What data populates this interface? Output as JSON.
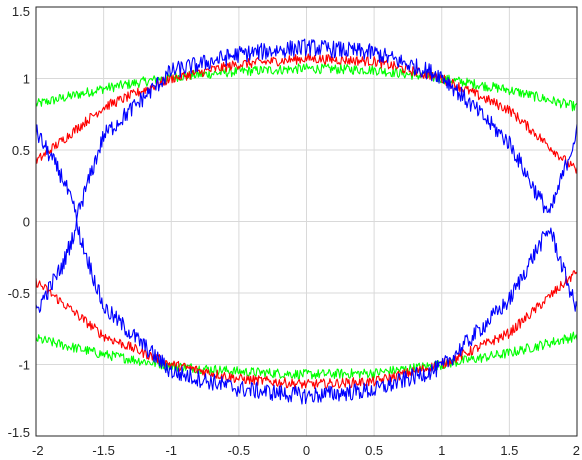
{
  "chart_data": {
    "type": "line",
    "title": "",
    "xlabel": "",
    "ylabel": "",
    "xlim": [
      -2,
      2
    ],
    "ylim": [
      -1.5,
      1.5
    ],
    "grid": true,
    "xticks": [
      -2,
      -1.5,
      -1,
      -0.5,
      0,
      0.5,
      1,
      1.5,
      2
    ],
    "yticks": [
      -1.5,
      -1,
      -0.5,
      0,
      0.5,
      1,
      1.5
    ],
    "xtick_labels": [
      "-2",
      "-1.5",
      "-1",
      "-0.5",
      "0",
      "0.5",
      "1",
      "1.5",
      "2"
    ],
    "ytick_labels": [
      "-1.5",
      "-1",
      "-0.5",
      "0",
      "0.5",
      "1",
      "1.5"
    ],
    "series": [
      {
        "color": "#00ff00",
        "x": [
          -2,
          -1.5,
          -1,
          -0.5,
          0,
          0.5,
          1,
          1.5,
          2
        ],
        "upper": [
          0.82,
          0.93,
          1.01,
          1.05,
          1.07,
          1.06,
          1.0,
          0.92,
          0.8
        ],
        "lower": [
          -0.82,
          -0.93,
          -1.01,
          -1.05,
          -1.07,
          -1.06,
          -1.0,
          -0.92,
          -0.8
        ]
      },
      {
        "color": "#ff0000",
        "x": [
          -2,
          -1.5,
          -1,
          -0.5,
          0,
          0.5,
          1,
          1.5,
          2
        ],
        "upper": [
          0.42,
          0.8,
          1.0,
          1.1,
          1.14,
          1.12,
          1.0,
          0.78,
          0.35
        ],
        "lower": [
          -0.42,
          -0.8,
          -1.0,
          -1.1,
          -1.14,
          -1.12,
          -1.0,
          -0.78,
          -0.35
        ]
      },
      {
        "color": "#0000ff",
        "x": [
          -2,
          -1.8,
          -1.7,
          -1.5,
          -1,
          -0.5,
          0,
          0.5,
          1,
          1.5,
          1.7,
          1.8,
          2
        ],
        "upper": [
          0.63,
          0.3,
          0.03,
          0.6,
          1.05,
          1.17,
          1.22,
          1.18,
          1.02,
          0.55,
          0.2,
          0.05,
          0.63
        ],
        "lower": [
          -0.63,
          -0.3,
          -0.03,
          -0.6,
          -1.05,
          -1.17,
          -1.22,
          -1.18,
          -1.02,
          -0.55,
          -0.2,
          -0.05,
          -0.63
        ]
      }
    ]
  }
}
